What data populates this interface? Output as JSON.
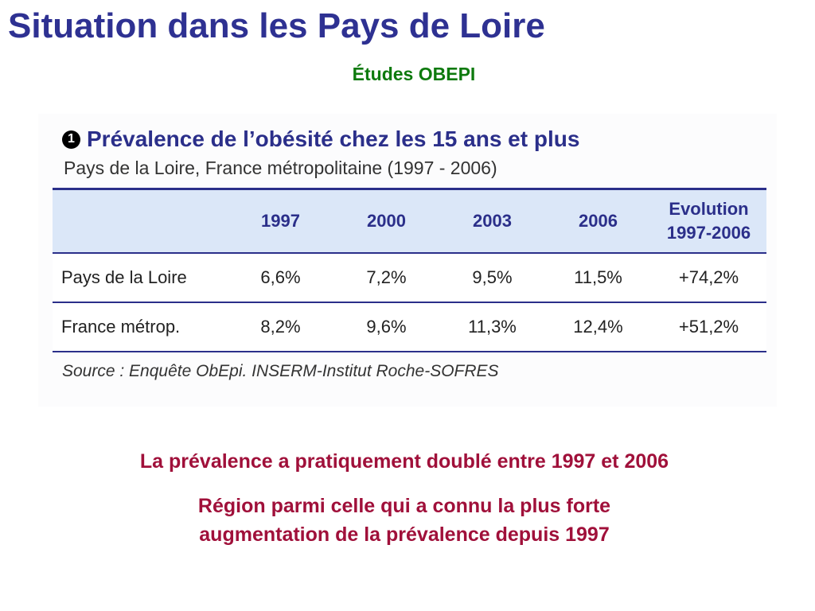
{
  "slide": {
    "title": "Situation dans les Pays de Loire",
    "subtitle": "Études OBEPI"
  },
  "table_figure": {
    "badge": "1",
    "title": "Prévalence de l’obésité chez les 15 ans et plus",
    "subtitle": "Pays de la Loire, France métropolitaine (1997 - 2006)",
    "headers": [
      "",
      "1997",
      "2000",
      "2003",
      "2006",
      "Evolution\n1997-2006"
    ],
    "header_evolution_line1": "Evolution",
    "header_evolution_line2": "1997-2006",
    "rows": [
      {
        "label": "Pays de la Loire",
        "values": [
          "6,6%",
          "7,2%",
          "9,5%",
          "11,5%",
          "+74,2%"
        ]
      },
      {
        "label": "France métrop.",
        "values": [
          "8,2%",
          "9,6%",
          "11,3%",
          "12,4%",
          "+51,2%"
        ]
      }
    ],
    "source": "Source : Enquête ObEpi. INSERM-Institut Roche-SOFRES"
  },
  "chart_data": {
    "type": "table",
    "title": "Prévalence de l’obésité chez les 15 ans et plus",
    "subtitle": "Pays de la Loire, France métropolitaine (1997 - 2006)",
    "columns": [
      "1997",
      "2000",
      "2003",
      "2006",
      "Evolution 1997-2006"
    ],
    "rows": [
      {
        "name": "Pays de la Loire",
        "values": [
          "6,6%",
          "7,2%",
          "9,5%",
          "11,5%",
          "+74,2%"
        ]
      },
      {
        "name": "France métrop.",
        "values": [
          "8,2%",
          "9,6%",
          "11,3%",
          "12,4%",
          "+51,2%"
        ]
      }
    ]
  },
  "conclusions": {
    "line1": "La prévalence a pratiquement doublé entre 1997 et 2006",
    "line2a": "Région parmi celle qui a connu la plus forte",
    "line2b": "augmentation de la prévalence depuis 1997"
  },
  "colors": {
    "title": "#2e3192",
    "subtitle": "#0e7a0e",
    "conclusion": "#a0103a",
    "table_header_bg": "#dbe7f8",
    "table_rule": "#2b2f8a"
  }
}
